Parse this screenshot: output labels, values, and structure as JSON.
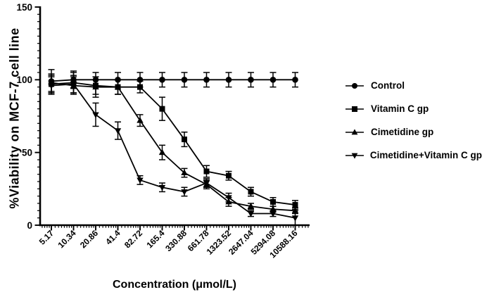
{
  "figure": {
    "background_color": "#ffffff",
    "ink_color": "#000000"
  },
  "chart_data": {
    "type": "line",
    "title": "",
    "xlabel": "Concentration (μmol/L)",
    "ylabel": "%Viability on MCF-7 cell line",
    "x_scale": "log2-categorical",
    "categories": [
      "5.17",
      "10.34",
      "20.86",
      "41.4",
      "82.72",
      "165.4",
      "330.88",
      "661.78",
      "1323.52",
      "2647.04",
      "5294.08",
      "10588.16"
    ],
    "y_ticks": [
      0,
      50,
      100,
      150
    ],
    "y_tick_labels": [
      "0",
      "50",
      "100",
      "150"
    ],
    "ylim": [
      0,
      150
    ],
    "y_minor_tick_step": 5,
    "grid": false,
    "error_bars": true,
    "legend_position": "right",
    "series": [
      {
        "name": "Control",
        "marker": "circle",
        "values": [
          99,
          100,
          100,
          100,
          100,
          100,
          100,
          100,
          100,
          100,
          100,
          100
        ],
        "errors": [
          8,
          6,
          5,
          5,
          5,
          5,
          5,
          5,
          5,
          5,
          5,
          5
        ]
      },
      {
        "name": "Vitamin C gp",
        "marker": "square",
        "values": [
          97,
          98,
          96,
          95,
          95,
          80,
          59,
          37,
          34,
          23,
          16,
          14
        ],
        "errors": [
          6,
          7,
          6,
          5,
          4,
          8,
          5,
          4,
          3,
          3,
          3,
          3
        ]
      },
      {
        "name": "Cimetidine gp",
        "marker": "triangle-up",
        "values": [
          98,
          96,
          95,
          95,
          72,
          50,
          36,
          28,
          16,
          13,
          11,
          10
        ],
        "errors": [
          6,
          6,
          7,
          5,
          4,
          5,
          3,
          3,
          3,
          2,
          2,
          2
        ]
      },
      {
        "name": "Cimetidine+Vitamin C gp",
        "marker": "triangle-down",
        "values": [
          96,
          97,
          76,
          65,
          31,
          26,
          23,
          29,
          19,
          8,
          8,
          5
        ],
        "errors": [
          6,
          6,
          8,
          6,
          3,
          3,
          3,
          3,
          3,
          2,
          2,
          5
        ]
      }
    ]
  }
}
